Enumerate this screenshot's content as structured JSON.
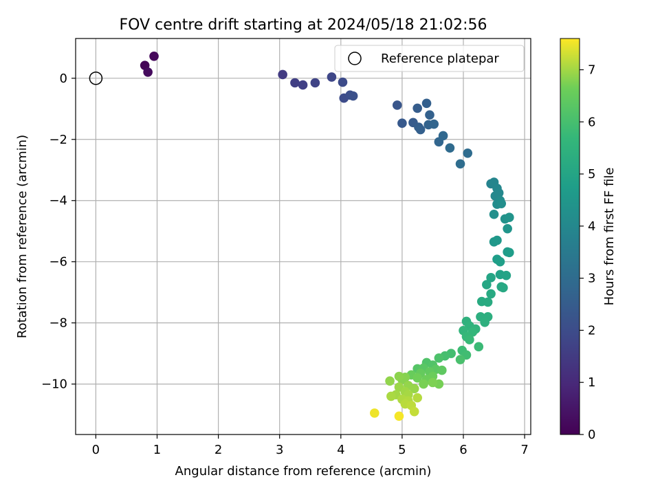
{
  "chart_data": {
    "type": "scatter",
    "title": "FOV centre drift starting at 2024/05/18 21:02:56",
    "xlabel": "Angular distance from reference (arcmin)",
    "ylabel": "Rotation from reference (arcmin)",
    "xlim": [
      -0.33,
      7.1
    ],
    "ylim": [
      -11.65,
      1.3
    ],
    "xticks": [
      0,
      1,
      2,
      3,
      4,
      5,
      6,
      7
    ],
    "xtick_labels": [
      "0",
      "1",
      "2",
      "3",
      "4",
      "5",
      "6",
      "7"
    ],
    "yticks": [
      0,
      -2,
      -4,
      -6,
      -8,
      -10
    ],
    "ytick_labels": [
      "0",
      "−2",
      "−4",
      "−6",
      "−8",
      "−10"
    ],
    "grid": true,
    "legend": {
      "position": "top-right",
      "entries": [
        {
          "label": "Reference platepar",
          "marker": "open-circle"
        }
      ]
    },
    "reference_point": {
      "x": 0,
      "y": 0
    },
    "colorbar": {
      "label": "Hours from first FF file",
      "colormap": "viridis",
      "range": [
        0,
        7.6
      ],
      "ticks": [
        0,
        1,
        2,
        3,
        4,
        5,
        6,
        7
      ],
      "tick_labels": [
        "0",
        "1",
        "2",
        "3",
        "4",
        "5",
        "6",
        "7"
      ]
    },
    "points": [
      {
        "x": 0.8,
        "y": 0.42,
        "t": 0.05
      },
      {
        "x": 0.95,
        "y": 0.72,
        "t": 0.15
      },
      {
        "x": 0.85,
        "y": 0.2,
        "t": 0.25
      },
      {
        "x": 3.05,
        "y": 0.12,
        "t": 1.5
      },
      {
        "x": 3.25,
        "y": -0.15,
        "t": 1.6
      },
      {
        "x": 3.38,
        "y": -0.22,
        "t": 1.65
      },
      {
        "x": 3.58,
        "y": -0.15,
        "t": 1.75
      },
      {
        "x": 3.85,
        "y": 0.04,
        "t": 1.85
      },
      {
        "x": 4.03,
        "y": -0.13,
        "t": 1.95
      },
      {
        "x": 4.05,
        "y": -0.65,
        "t": 2.0
      },
      {
        "x": 4.15,
        "y": -0.55,
        "t": 2.05
      },
      {
        "x": 4.2,
        "y": -0.58,
        "t": 2.1
      },
      {
        "x": 4.92,
        "y": -0.88,
        "t": 2.3
      },
      {
        "x": 5.0,
        "y": -1.47,
        "t": 2.4
      },
      {
        "x": 5.18,
        "y": -1.45,
        "t": 2.45
      },
      {
        "x": 5.25,
        "y": -0.98,
        "t": 2.5
      },
      {
        "x": 5.27,
        "y": -1.6,
        "t": 2.55
      },
      {
        "x": 5.3,
        "y": -1.68,
        "t": 2.6
      },
      {
        "x": 5.4,
        "y": -0.82,
        "t": 2.6
      },
      {
        "x": 5.45,
        "y": -1.2,
        "t": 2.65
      },
      {
        "x": 5.43,
        "y": -1.52,
        "t": 2.7
      },
      {
        "x": 5.52,
        "y": -1.5,
        "t": 2.75
      },
      {
        "x": 5.6,
        "y": -2.08,
        "t": 2.8
      },
      {
        "x": 5.67,
        "y": -1.88,
        "t": 2.85
      },
      {
        "x": 5.78,
        "y": -2.28,
        "t": 2.95
      },
      {
        "x": 5.95,
        "y": -2.8,
        "t": 3.05
      },
      {
        "x": 6.07,
        "y": -2.45,
        "t": 3.0
      },
      {
        "x": 6.45,
        "y": -3.45,
        "t": 3.85
      },
      {
        "x": 6.5,
        "y": -3.4,
        "t": 3.9
      },
      {
        "x": 6.55,
        "y": -3.6,
        "t": 3.95
      },
      {
        "x": 6.52,
        "y": -3.85,
        "t": 4.0
      },
      {
        "x": 6.58,
        "y": -3.75,
        "t": 4.0
      },
      {
        "x": 6.6,
        "y": -4.0,
        "t": 4.1
      },
      {
        "x": 6.55,
        "y": -4.12,
        "t": 4.15
      },
      {
        "x": 6.62,
        "y": -4.1,
        "t": 4.2
      },
      {
        "x": 6.5,
        "y": -4.45,
        "t": 4.25
      },
      {
        "x": 6.68,
        "y": -4.6,
        "t": 4.35
      },
      {
        "x": 6.75,
        "y": -4.55,
        "t": 4.4
      },
      {
        "x": 6.72,
        "y": -4.92,
        "t": 4.45
      },
      {
        "x": 6.5,
        "y": -5.35,
        "t": 4.5
      },
      {
        "x": 6.55,
        "y": -5.3,
        "t": 4.55
      },
      {
        "x": 6.72,
        "y": -5.68,
        "t": 4.65
      },
      {
        "x": 6.75,
        "y": -5.7,
        "t": 4.7
      },
      {
        "x": 6.55,
        "y": -5.92,
        "t": 4.75
      },
      {
        "x": 6.6,
        "y": -6.0,
        "t": 4.8
      },
      {
        "x": 6.6,
        "y": -6.42,
        "t": 4.9
      },
      {
        "x": 6.7,
        "y": -6.45,
        "t": 4.95
      },
      {
        "x": 6.45,
        "y": -6.52,
        "t": 5.0
      },
      {
        "x": 6.38,
        "y": -6.75,
        "t": 5.05
      },
      {
        "x": 6.62,
        "y": -6.82,
        "t": 5.1
      },
      {
        "x": 6.65,
        "y": -6.85,
        "t": 5.12
      },
      {
        "x": 6.45,
        "y": -7.05,
        "t": 5.15
      },
      {
        "x": 6.3,
        "y": -7.3,
        "t": 5.2
      },
      {
        "x": 6.4,
        "y": -7.32,
        "t": 5.22
      },
      {
        "x": 6.28,
        "y": -7.8,
        "t": 5.35
      },
      {
        "x": 6.4,
        "y": -7.8,
        "t": 5.37
      },
      {
        "x": 6.35,
        "y": -7.98,
        "t": 5.4
      },
      {
        "x": 6.05,
        "y": -7.95,
        "t": 5.45
      },
      {
        "x": 6.1,
        "y": -8.1,
        "t": 5.5
      },
      {
        "x": 6.2,
        "y": -8.2,
        "t": 5.55
      },
      {
        "x": 6.0,
        "y": -8.25,
        "t": 5.6
      },
      {
        "x": 6.15,
        "y": -8.3,
        "t": 5.65
      },
      {
        "x": 6.05,
        "y": -8.45,
        "t": 5.7
      },
      {
        "x": 6.1,
        "y": -8.55,
        "t": 5.75
      },
      {
        "x": 6.25,
        "y": -8.78,
        "t": 5.8
      },
      {
        "x": 5.98,
        "y": -8.9,
        "t": 5.85
      },
      {
        "x": 6.05,
        "y": -9.05,
        "t": 5.9
      },
      {
        "x": 5.8,
        "y": -9.0,
        "t": 5.95
      },
      {
        "x": 5.7,
        "y": -9.08,
        "t": 6.0
      },
      {
        "x": 5.95,
        "y": -9.2,
        "t": 6.05
      },
      {
        "x": 5.6,
        "y": -9.15,
        "t": 6.1
      },
      {
        "x": 5.4,
        "y": -9.3,
        "t": 6.15
      },
      {
        "x": 5.5,
        "y": -9.38,
        "t": 6.2
      },
      {
        "x": 5.25,
        "y": -9.5,
        "t": 6.25
      },
      {
        "x": 5.35,
        "y": -9.48,
        "t": 6.3
      },
      {
        "x": 5.55,
        "y": -9.52,
        "t": 6.35
      },
      {
        "x": 5.65,
        "y": -9.55,
        "t": 6.4
      },
      {
        "x": 5.45,
        "y": -9.6,
        "t": 6.45
      },
      {
        "x": 5.3,
        "y": -9.65,
        "t": 6.5
      },
      {
        "x": 5.15,
        "y": -9.7,
        "t": 6.55
      },
      {
        "x": 5.5,
        "y": -9.75,
        "t": 6.6
      },
      {
        "x": 5.4,
        "y": -9.85,
        "t": 6.62
      },
      {
        "x": 5.25,
        "y": -9.8,
        "t": 6.65
      },
      {
        "x": 5.6,
        "y": -10.0,
        "t": 6.7
      },
      {
        "x": 5.35,
        "y": -10.0,
        "t": 6.72
      },
      {
        "x": 5.5,
        "y": -9.95,
        "t": 6.75
      },
      {
        "x": 5.05,
        "y": -9.78,
        "t": 6.8
      },
      {
        "x": 5.0,
        "y": -9.85,
        "t": 6.82
      },
      {
        "x": 4.95,
        "y": -9.75,
        "t": 6.85
      },
      {
        "x": 4.8,
        "y": -9.9,
        "t": 6.88
      },
      {
        "x": 5.1,
        "y": -10.05,
        "t": 6.9
      },
      {
        "x": 5.2,
        "y": -10.15,
        "t": 6.92
      },
      {
        "x": 4.95,
        "y": -10.1,
        "t": 6.95
      },
      {
        "x": 5.05,
        "y": -10.25,
        "t": 6.98
      },
      {
        "x": 4.9,
        "y": -10.35,
        "t": 7.0
      },
      {
        "x": 5.1,
        "y": -10.35,
        "t": 7.02
      },
      {
        "x": 4.82,
        "y": -10.4,
        "t": 7.05
      },
      {
        "x": 5.0,
        "y": -10.5,
        "t": 7.08
      },
      {
        "x": 5.1,
        "y": -10.55,
        "t": 7.1
      },
      {
        "x": 5.25,
        "y": -10.45,
        "t": 7.12
      },
      {
        "x": 5.05,
        "y": -10.65,
        "t": 7.15
      },
      {
        "x": 5.15,
        "y": -10.7,
        "t": 7.18
      },
      {
        "x": 5.2,
        "y": -10.9,
        "t": 7.22
      },
      {
        "x": 4.55,
        "y": -10.95,
        "t": 7.5
      },
      {
        "x": 4.95,
        "y": -11.05,
        "t": 7.55
      }
    ]
  }
}
